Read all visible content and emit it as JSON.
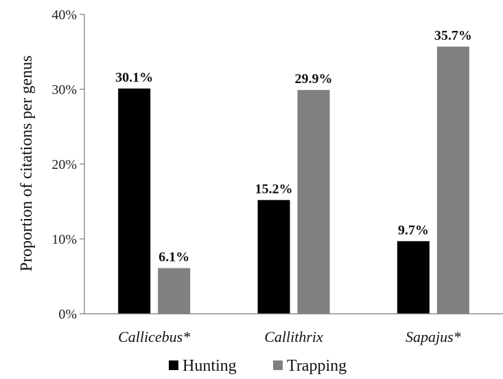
{
  "chart_data": {
    "type": "bar",
    "title": "",
    "xlabel": "",
    "ylabel": "Proportion of citations per genus",
    "categories": [
      "Callicebus*",
      "Callithrix",
      "Sapajus*"
    ],
    "series": [
      {
        "name": "Hunting",
        "values": [
          30.1,
          15.2,
          9.7
        ],
        "labels": [
          "30.1%",
          "15.2%",
          "9.7%"
        ],
        "color": "#000000"
      },
      {
        "name": "Trapping",
        "values": [
          6.1,
          29.9,
          35.7
        ],
        "labels": [
          "6.1%",
          "29.9%",
          "35.7%"
        ],
        "color": "#808080"
      }
    ],
    "ylim": [
      0,
      40
    ],
    "yticks": [
      0,
      10,
      20,
      30,
      40
    ],
    "ytick_labels": [
      "0%",
      "10%",
      "20%",
      "30%",
      "40%"
    ],
    "grid": false,
    "legend": {
      "position": "bottom",
      "entries": [
        "Hunting",
        "Trapping"
      ]
    }
  }
}
